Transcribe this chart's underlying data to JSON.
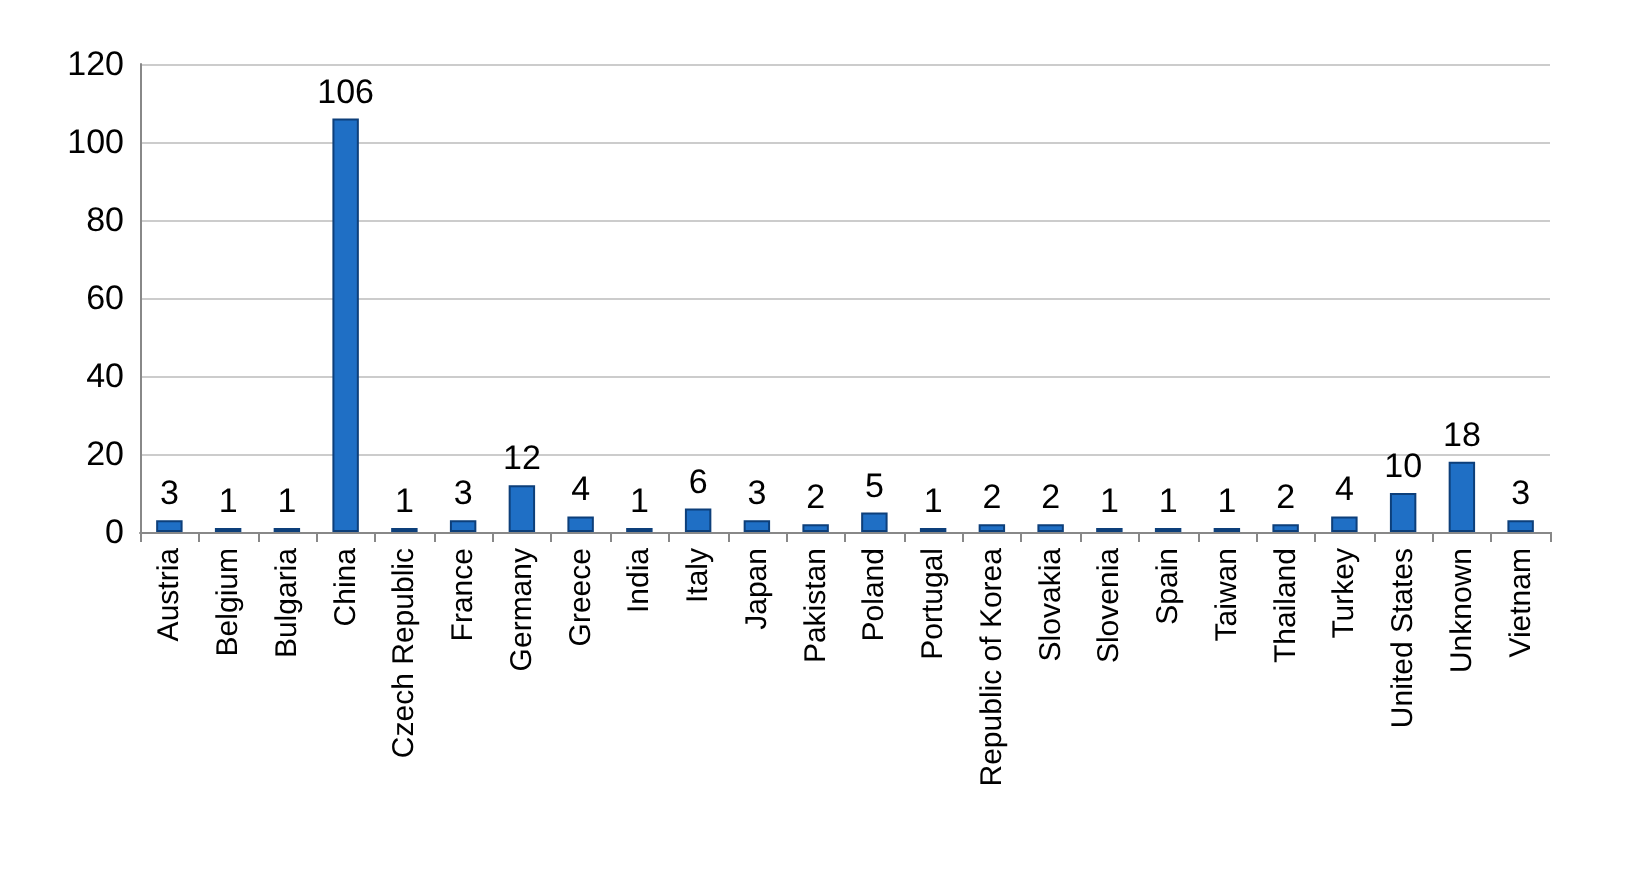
{
  "chart_data": {
    "type": "bar",
    "categories": [
      "Austria",
      "Belgium",
      "Bulgaria",
      "China",
      "Czech Republic",
      "France",
      "Germany",
      "Greece",
      "India",
      "Italy",
      "Japan",
      "Pakistan",
      "Poland",
      "Portugal",
      "Republic of Korea",
      "Slovakia",
      "Slovenia",
      "Spain",
      "Taiwan",
      "Thailand",
      "Turkey",
      "United States",
      "Unknown",
      "Vietnam"
    ],
    "values": [
      3,
      1,
      1,
      106,
      1,
      3,
      12,
      4,
      1,
      6,
      3,
      2,
      5,
      1,
      2,
      2,
      1,
      1,
      1,
      2,
      4,
      10,
      18,
      3
    ],
    "color": "#1f6fc5",
    "ylim": [
      0,
      120
    ],
    "yticks": [
      0,
      20,
      40,
      60,
      80,
      100,
      120
    ],
    "grid": "y",
    "data_labels": true
  }
}
